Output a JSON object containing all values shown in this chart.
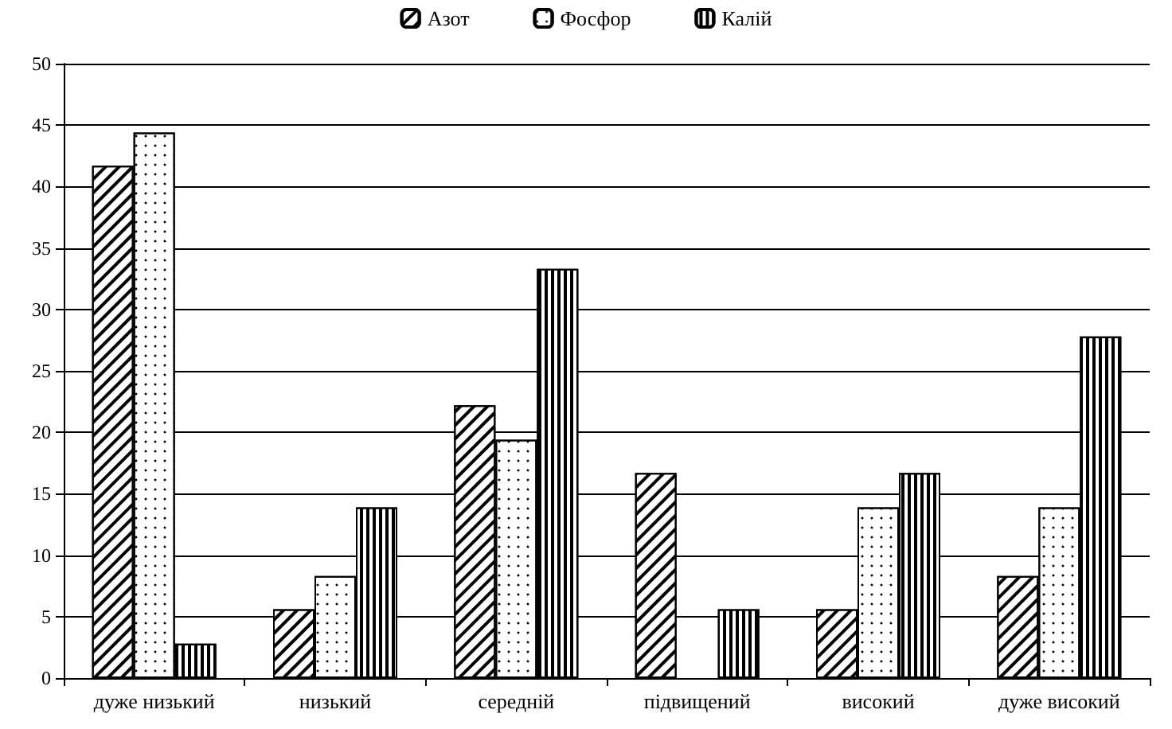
{
  "chart_data": {
    "type": "bar",
    "categories": [
      "дуже низький",
      "низький",
      "середній",
      "підвищений",
      "високий",
      "дуже високий"
    ],
    "series": [
      {
        "name": "Азот",
        "color": "#ffffff",
        "values": [
          41.7,
          5.6,
          22.2,
          16.7,
          5.6,
          8.3
        ]
      },
      {
        "name": "Фосфор",
        "color": "#ffffff",
        "values": [
          44.4,
          8.3,
          19.4,
          0,
          13.9,
          13.9
        ]
      },
      {
        "name": "Калій",
        "color": "#ffffff",
        "values": [
          2.8,
          13.9,
          33.3,
          5.6,
          16.7,
          27.8
        ]
      }
    ],
    "ylim": [
      0,
      50
    ],
    "yticks": [
      0,
      5,
      10,
      15,
      20,
      25,
      30,
      35,
      40,
      45,
      50
    ],
    "grid": "y",
    "legend": "top"
  }
}
